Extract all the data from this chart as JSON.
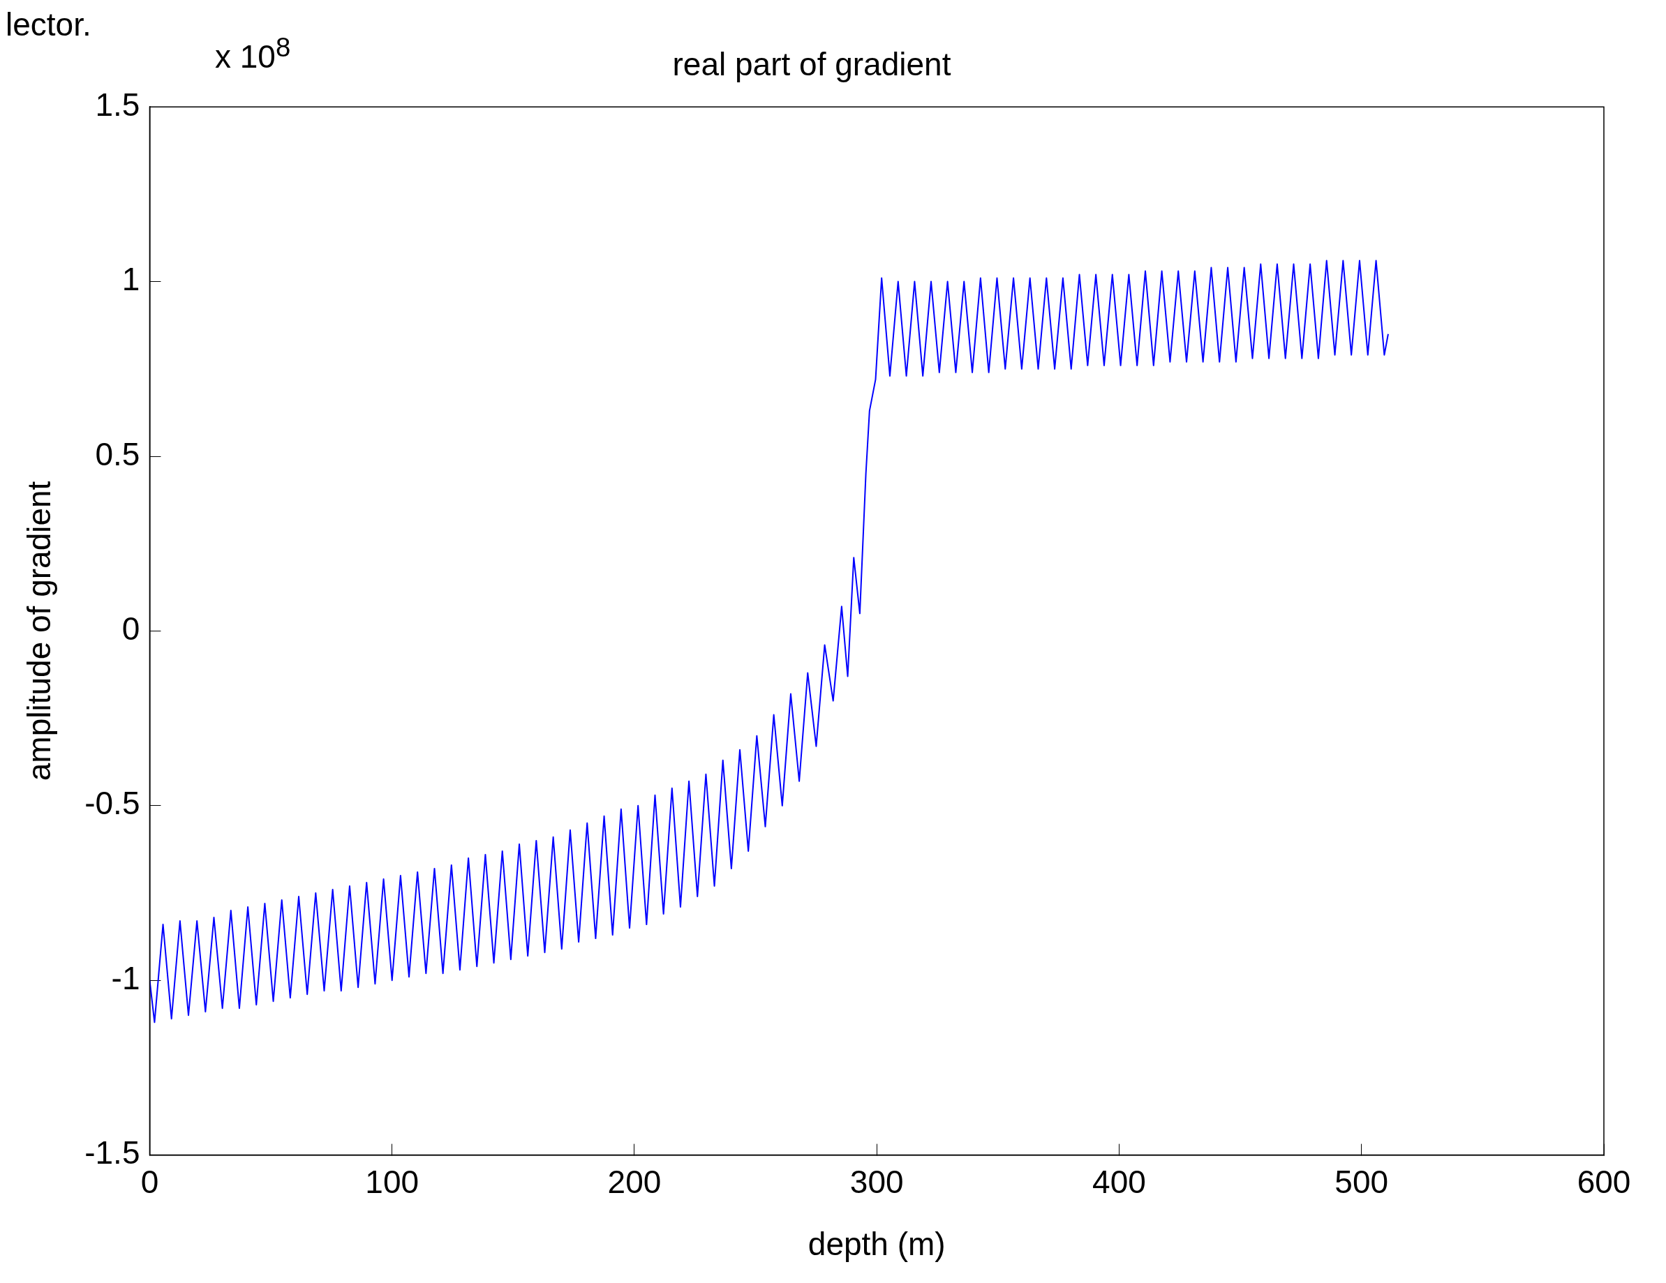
{
  "chart_data": {
    "type": "line",
    "title": "real part of gradient",
    "xlabel": "depth (m)",
    "ylabel": "amplitude of gradient",
    "annotations": [
      "lector.",
      "x 10$^{8}$"
    ],
    "xlim": [
      0,
      600
    ],
    "xticks": [
      0,
      100,
      200,
      300,
      400,
      500,
      600
    ],
    "ylim": [
      -1.5,
      1.5
    ],
    "yticks": [
      -1.5,
      -1,
      -0.5,
      0,
      0.5,
      1,
      1.5
    ],
    "grid": false,
    "legend": false,
    "marker": "none",
    "line_style": "solid",
    "series": [
      {
        "color": "#0000ff",
        "x": [
          0,
          2,
          5.5,
          9,
          12.5,
          16,
          19.5,
          23,
          26.5,
          30,
          33.5,
          37,
          40.5,
          44,
          47.5,
          51,
          54.5,
          58,
          61.5,
          65,
          68.5,
          72,
          75.5,
          79,
          82.5,
          86,
          89.5,
          93,
          96.5,
          100,
          103.5,
          107,
          110.5,
          114,
          117.5,
          121,
          124.5,
          128,
          131.5,
          135,
          138.5,
          142,
          145.5,
          149,
          152.5,
          156,
          159.5,
          163,
          166.5,
          170,
          173.5,
          177,
          180.5,
          184,
          187.5,
          191,
          194.5,
          198,
          201.5,
          205,
          208.5,
          212,
          215.5,
          219,
          222.5,
          226,
          229.5,
          233,
          236.5,
          240,
          243.5,
          247,
          250.5,
          254,
          257.5,
          261,
          264.5,
          268,
          271.5,
          275,
          278.5,
          282,
          285.5,
          288,
          290.5,
          293,
          295.5,
          297,
          299.5,
          302,
          305.4,
          308.8,
          312.2,
          315.6,
          319,
          322.4,
          325.8,
          329.2,
          332.6,
          336,
          339.4,
          342.8,
          346.2,
          349.6,
          353,
          356.4,
          359.8,
          363.2,
          366.6,
          370,
          373.4,
          376.8,
          380.2,
          383.6,
          387,
          390.4,
          393.8,
          397.2,
          400.6,
          404,
          407.4,
          410.8,
          414.2,
          417.6,
          421,
          424.4,
          427.8,
          431.2,
          434.6,
          438,
          441.4,
          444.8,
          448.2,
          451.6,
          455,
          458.4,
          461.8,
          465.2,
          468.6,
          472,
          475.4,
          478.8,
          482.2,
          485.6,
          489,
          492.4,
          495.8,
          499.2,
          502.6,
          506,
          509.4,
          511
        ],
        "values": [
          -1.0,
          -1.12,
          -0.84,
          -1.11,
          -0.83,
          -1.1,
          -0.83,
          -1.09,
          -0.82,
          -1.08,
          -0.8,
          -1.08,
          -0.79,
          -1.07,
          -0.78,
          -1.06,
          -0.77,
          -1.05,
          -0.76,
          -1.04,
          -0.75,
          -1.03,
          -0.74,
          -1.03,
          -0.73,
          -1.02,
          -0.72,
          -1.01,
          -0.71,
          -1.0,
          -0.7,
          -0.99,
          -0.69,
          -0.98,
          -0.68,
          -0.98,
          -0.67,
          -0.97,
          -0.65,
          -0.96,
          -0.64,
          -0.95,
          -0.63,
          -0.94,
          -0.61,
          -0.93,
          -0.6,
          -0.92,
          -0.59,
          -0.91,
          -0.57,
          -0.89,
          -0.55,
          -0.88,
          -0.53,
          -0.87,
          -0.51,
          -0.85,
          -0.5,
          -0.84,
          -0.47,
          -0.81,
          -0.45,
          -0.79,
          -0.43,
          -0.76,
          -0.41,
          -0.73,
          -0.37,
          -0.68,
          -0.34,
          -0.63,
          -0.3,
          -0.56,
          -0.24,
          -0.5,
          -0.18,
          -0.43,
          -0.12,
          -0.33,
          -0.04,
          -0.2,
          0.07,
          -0.13,
          0.21,
          0.05,
          0.45,
          0.63,
          0.72,
          1.01,
          0.73,
          1.0,
          0.73,
          1.0,
          0.73,
          1.0,
          0.74,
          1.0,
          0.74,
          1.0,
          0.74,
          1.01,
          0.74,
          1.01,
          0.75,
          1.01,
          0.75,
          1.01,
          0.75,
          1.01,
          0.75,
          1.01,
          0.75,
          1.02,
          0.76,
          1.02,
          0.76,
          1.02,
          0.76,
          1.02,
          0.76,
          1.03,
          0.76,
          1.03,
          0.77,
          1.03,
          0.77,
          1.03,
          0.77,
          1.04,
          0.77,
          1.04,
          0.77,
          1.04,
          0.78,
          1.05,
          0.78,
          1.05,
          0.78,
          1.05,
          0.78,
          1.05,
          0.78,
          1.06,
          0.79,
          1.06,
          0.79,
          1.06,
          0.79,
          1.06,
          0.79,
          0.85
        ]
      }
    ]
  }
}
